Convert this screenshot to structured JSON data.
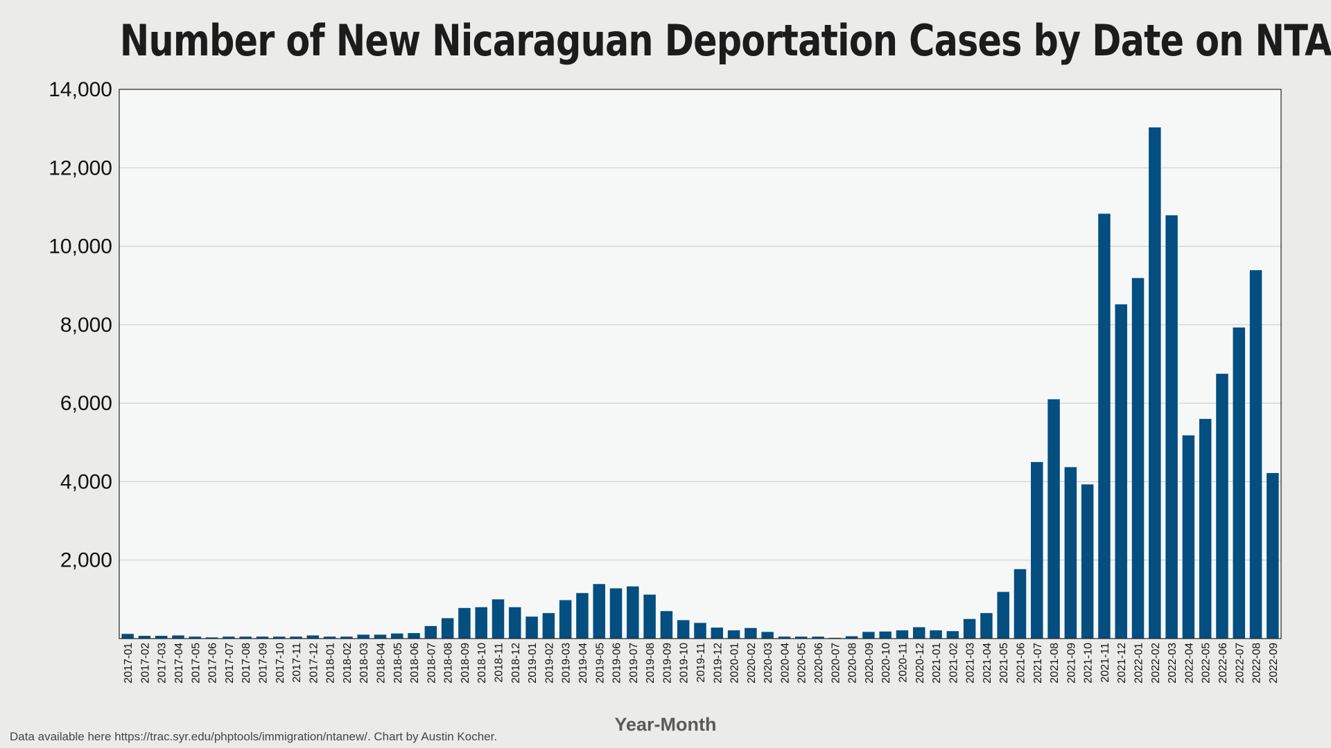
{
  "chart_data": {
    "type": "bar",
    "title": "Number of New Nicaraguan Deportation Cases by Date on NTA",
    "xlabel": "Year-Month",
    "ylabel": "",
    "ylim": [
      0,
      14000
    ],
    "yticks": [
      2000,
      4000,
      6000,
      8000,
      10000,
      12000,
      14000
    ],
    "ytick_labels": [
      "2,000",
      "4,000",
      "6,000",
      "8,000",
      "10,000",
      "12,000",
      "14,000"
    ],
    "grid": true,
    "bar_color": "#044e80",
    "categories": [
      "2017-01",
      "2017-02",
      "2017-03",
      "2017-04",
      "2017-05",
      "2017-06",
      "2017-07",
      "2017-08",
      "2017-09",
      "2017-10",
      "2017-11",
      "2017-12",
      "2018-01",
      "2018-02",
      "2018-03",
      "2018-04",
      "2018-05",
      "2018-06",
      "2018-07",
      "2018-08",
      "2018-09",
      "2018-10",
      "2018-11",
      "2018-12",
      "2019-01",
      "2019-02",
      "2019-03",
      "2019-04",
      "2019-05",
      "2019-06",
      "2019-07",
      "2019-08",
      "2019-09",
      "2019-10",
      "2019-11",
      "2019-12",
      "2020-01",
      "2020-02",
      "2020-03",
      "2020-04",
      "2020-05",
      "2020-06",
      "2020-07",
      "2020-08",
      "2020-09",
      "2020-10",
      "2020-11",
      "2020-12",
      "2021-01",
      "2021-02",
      "2021-03",
      "2021-04",
      "2021-05",
      "2021-06",
      "2021-07",
      "2021-08",
      "2021-09",
      "2021-10",
      "2021-11",
      "2021-12",
      "2022-01",
      "2022-02",
      "2022-03",
      "2022-04",
      "2022-05",
      "2022-06",
      "2022-07",
      "2022-08",
      "2022-09"
    ],
    "values": [
      120,
      70,
      70,
      80,
      50,
      30,
      50,
      50,
      50,
      50,
      50,
      80,
      50,
      50,
      100,
      100,
      130,
      140,
      320,
      520,
      780,
      800,
      1000,
      800,
      560,
      650,
      980,
      1160,
      1390,
      1280,
      1330,
      1120,
      700,
      470,
      400,
      280,
      210,
      270,
      170,
      50,
      50,
      50,
      20,
      60,
      170,
      180,
      210,
      290,
      210,
      190,
      500,
      650,
      1190,
      1770,
      4500,
      6100,
      4370,
      3930,
      10830,
      8520,
      9190,
      13030,
      10790,
      5180,
      5600,
      6750,
      7930,
      9390,
      4220
    ]
  },
  "footer": "Data available here https://trac.syr.edu/phptools/immigration/ntanew/. Chart by Austin Kocher."
}
